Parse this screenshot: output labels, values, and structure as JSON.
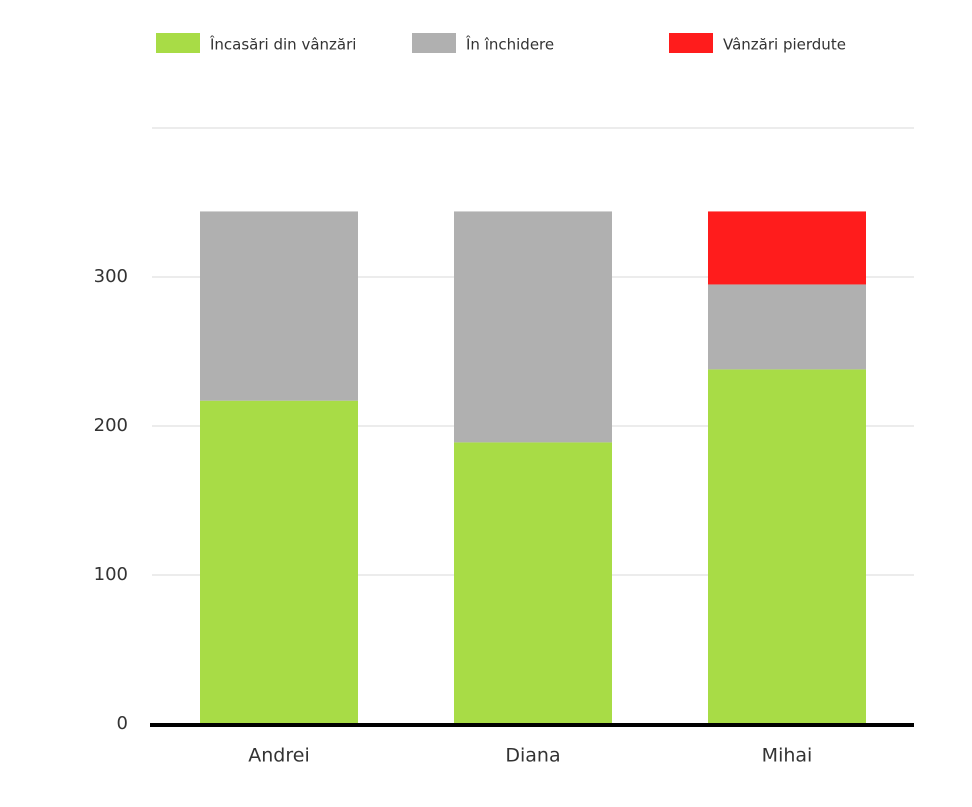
{
  "chart_data": {
    "type": "stacked-bar",
    "categories": [
      "Andrei",
      "Diana",
      "Mihai"
    ],
    "series": [
      {
        "name": "Încasări din vânzări",
        "color": "#a8dc46",
        "values": [
          217,
          189,
          238
        ]
      },
      {
        "name": "În închidere",
        "color": "#b0b0b0",
        "values": [
          127,
          155,
          57
        ]
      },
      {
        "name": "Vânzări pierdute",
        "color": "#ff1c1c",
        "values": [
          0,
          0,
          49
        ]
      }
    ],
    "ylim": [
      0,
      400
    ],
    "yticks": [
      0,
      100,
      200,
      300
    ],
    "grid": true,
    "legend": "top"
  }
}
